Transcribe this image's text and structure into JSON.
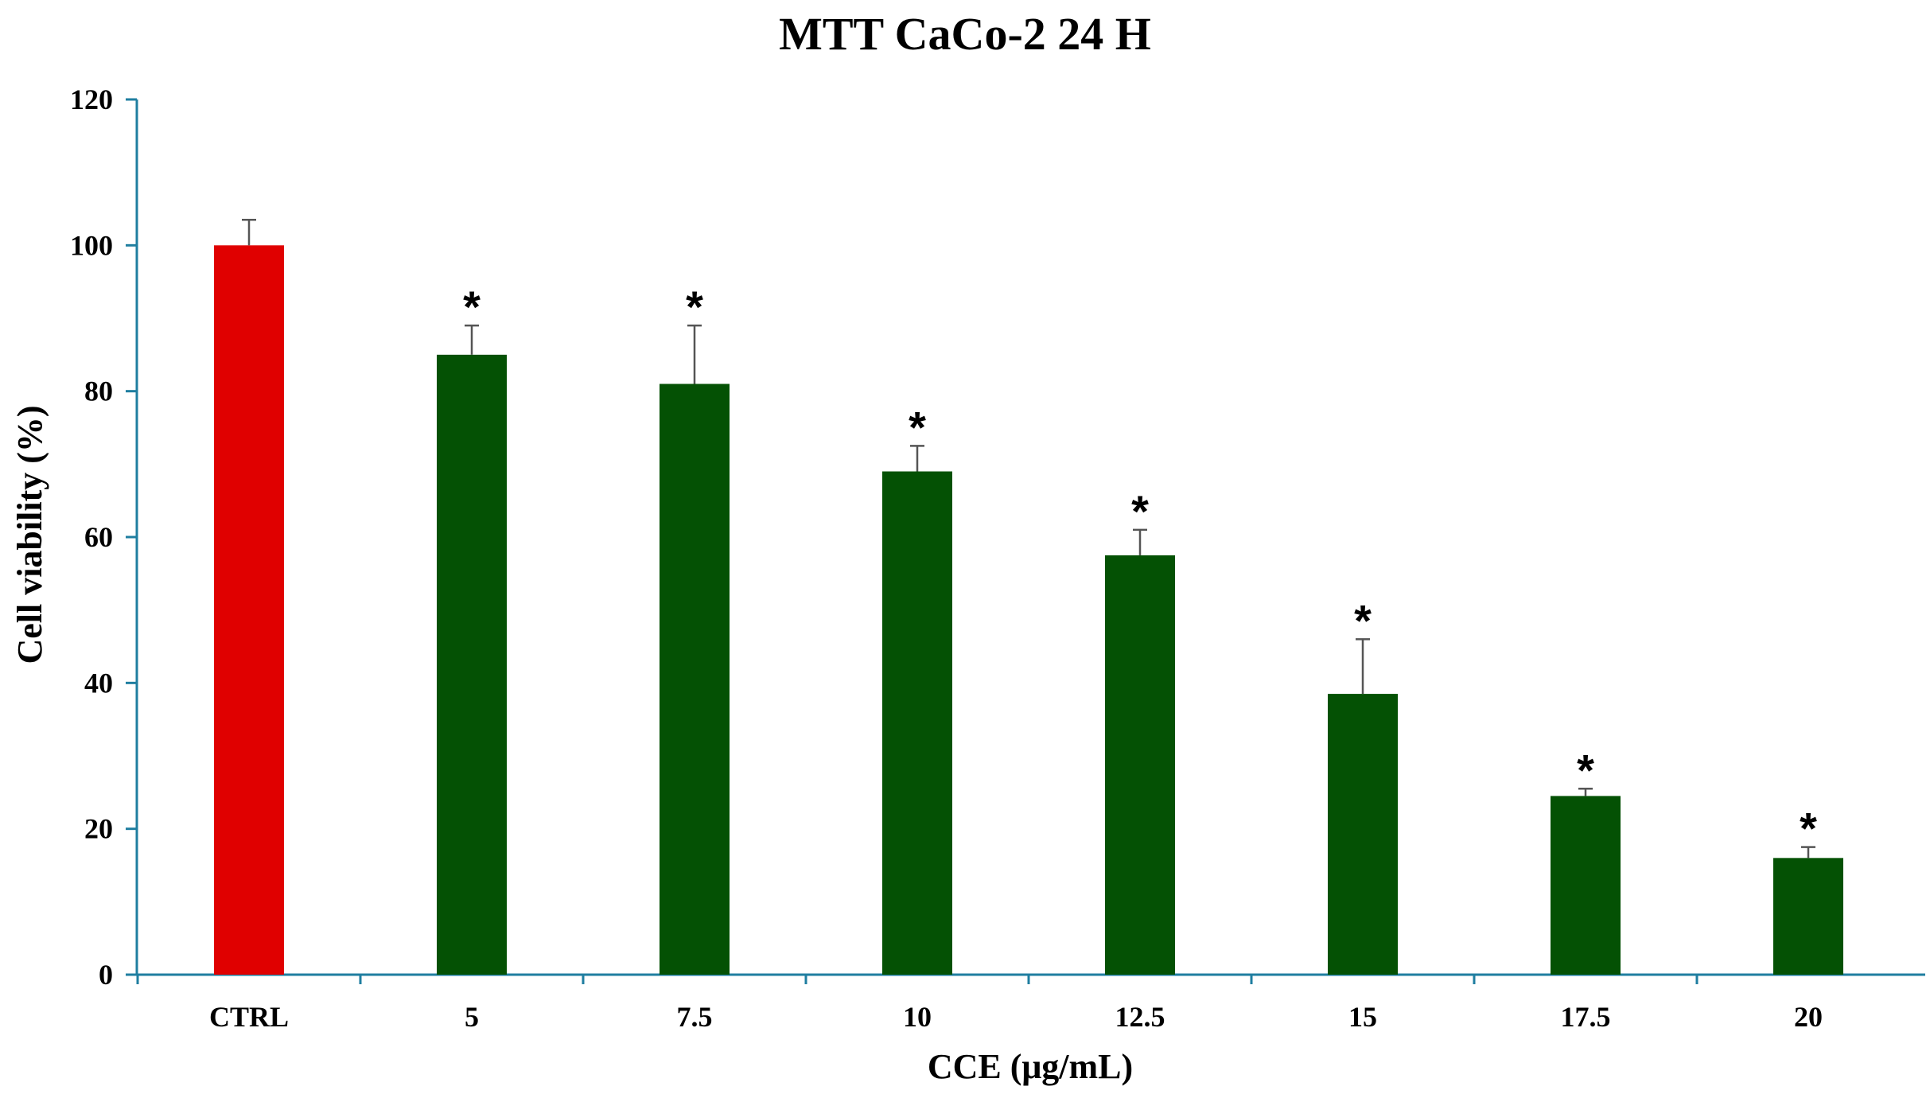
{
  "chart_data": {
    "type": "bar",
    "title": "MTT CaCo-2 24 H",
    "xlabel": "CCE (μg/mL)",
    "ylabel": "Cell viability (%)",
    "ylim": [
      0,
      120
    ],
    "yticks": [
      "0",
      "20",
      "40",
      "60",
      "80",
      "100",
      "120"
    ],
    "categories": [
      "CTRL",
      "5",
      "7.5",
      "10",
      "12.5",
      "15",
      "17.5",
      "20"
    ],
    "values": [
      100,
      85,
      81,
      69,
      57.5,
      38.5,
      24.5,
      16
    ],
    "errors": [
      3.5,
      4,
      8,
      3.5,
      3.5,
      7.5,
      1,
      1.5
    ],
    "significance": [
      "",
      "*",
      "*",
      "*",
      "*",
      "*",
      "*",
      "*"
    ],
    "colors": {
      "control": "#e00000",
      "treatment": "#045104",
      "axis": "#1f7ea0",
      "error_bar": "#555555"
    },
    "grid": false,
    "legend": "none"
  }
}
